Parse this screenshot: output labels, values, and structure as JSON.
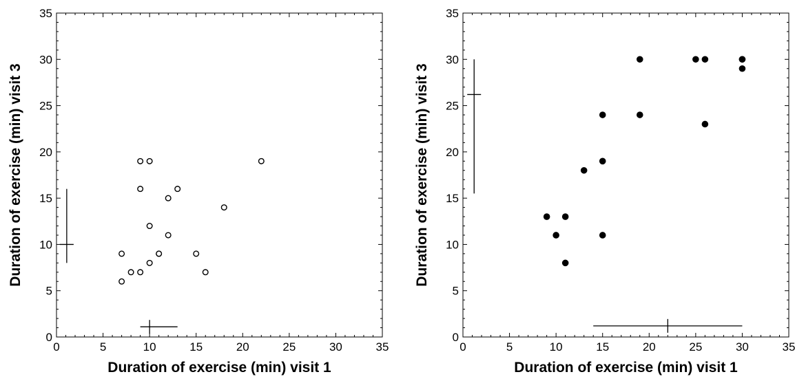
{
  "chart_data": [
    {
      "type": "scatter",
      "xlabel": "Duration of exercise (min) visit 1",
      "ylabel": "Duration of exercise (min) visit 3",
      "xlim": [
        0,
        35
      ],
      "ylim": [
        0,
        35
      ],
      "xticks": [
        "0",
        "5",
        "10",
        "15",
        "20",
        "25",
        "30",
        "35"
      ],
      "yticks": [
        "0",
        "5",
        "10",
        "15",
        "20",
        "25",
        "30",
        "35"
      ],
      "marker": "open-circle",
      "grid": false,
      "points": [
        {
          "x": 7,
          "y": 6
        },
        {
          "x": 7,
          "y": 9
        },
        {
          "x": 8,
          "y": 7
        },
        {
          "x": 9,
          "y": 7
        },
        {
          "x": 9,
          "y": 16
        },
        {
          "x": 9,
          "y": 19
        },
        {
          "x": 10,
          "y": 19
        },
        {
          "x": 10,
          "y": 12
        },
        {
          "x": 10,
          "y": 8
        },
        {
          "x": 11,
          "y": 9
        },
        {
          "x": 11,
          "y": 9
        },
        {
          "x": 12,
          "y": 15
        },
        {
          "x": 12,
          "y": 11
        },
        {
          "x": 13,
          "y": 16
        },
        {
          "x": 15,
          "y": 9
        },
        {
          "x": 16,
          "y": 7
        },
        {
          "x": 18,
          "y": 14
        },
        {
          "x": 22,
          "y": 19
        }
      ],
      "x_summary": {
        "center": 10,
        "low": 9,
        "high": 13,
        "at_y": 1.1
      },
      "y_summary": {
        "center": 10,
        "low": 8,
        "high": 16,
        "at_x": 1.1
      }
    },
    {
      "type": "scatter",
      "xlabel": "Duration of exercise (min) visit 1",
      "ylabel": "Duration of exercise (min) visit 3",
      "xlim": [
        0,
        35
      ],
      "ylim": [
        0,
        35
      ],
      "xticks": [
        "0",
        "5",
        "10",
        "15",
        "20",
        "25",
        "30",
        "35"
      ],
      "yticks": [
        "0",
        "5",
        "10",
        "15",
        "20",
        "25",
        "30",
        "35"
      ],
      "marker": "filled-circle",
      "grid": false,
      "points": [
        {
          "x": 9,
          "y": 13
        },
        {
          "x": 10,
          "y": 11
        },
        {
          "x": 11,
          "y": 13
        },
        {
          "x": 11,
          "y": 8
        },
        {
          "x": 13,
          "y": 18
        },
        {
          "x": 15,
          "y": 24
        },
        {
          "x": 15,
          "y": 19
        },
        {
          "x": 15,
          "y": 11
        },
        {
          "x": 19,
          "y": 30
        },
        {
          "x": 19,
          "y": 24
        },
        {
          "x": 25,
          "y": 30
        },
        {
          "x": 26,
          "y": 30
        },
        {
          "x": 26,
          "y": 23
        },
        {
          "x": 30,
          "y": 30
        },
        {
          "x": 30,
          "y": 30
        },
        {
          "x": 30,
          "y": 29
        }
      ],
      "x_summary": {
        "center": 22,
        "low": 14,
        "high": 30,
        "at_y": 1.2
      },
      "y_summary": {
        "center": 26.2,
        "low": 15.5,
        "high": 30,
        "at_x": 1.2
      }
    }
  ]
}
